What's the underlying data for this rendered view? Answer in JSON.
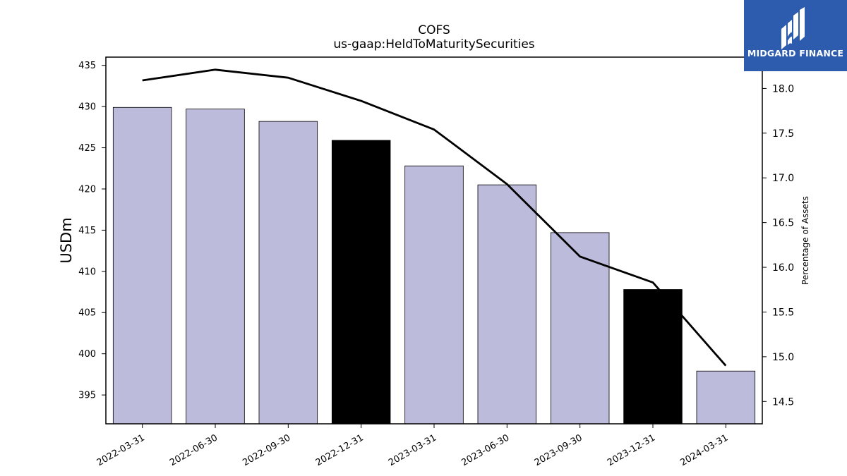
{
  "chart_data": {
    "type": "bar",
    "title": "COFS",
    "subtitle": "us-gaap:HeldToMaturitySecurities",
    "ylabel": "USDm",
    "y2label": "Percentage of Assets",
    "ylim": [
      391.5,
      436
    ],
    "y2lim": [
      14.25,
      18.35
    ],
    "yticks": [
      395,
      400,
      405,
      410,
      415,
      420,
      425,
      430,
      435
    ],
    "y2ticks": [
      "14.5",
      "15.0",
      "15.5",
      "16.0",
      "16.5",
      "17.0",
      "17.5",
      "18.0"
    ],
    "categories": [
      "2022-03-31",
      "2022-06-30",
      "2022-09-30",
      "2022-12-31",
      "2023-03-31",
      "2023-06-30",
      "2023-09-30",
      "2023-12-31",
      "2024-03-31"
    ],
    "series": [
      {
        "type": "bar",
        "axis": "left",
        "values": [
          429.9,
          429.7,
          428.2,
          425.9,
          422.8,
          420.5,
          414.7,
          407.8,
          397.9
        ],
        "colors": [
          "#bdbbdb",
          "#bdbbdb",
          "#bdbbdb",
          "#000000",
          "#bdbbdb",
          "#bdbbdb",
          "#bdbbdb",
          "#000000",
          "#bdbbdb"
        ]
      },
      {
        "type": "line",
        "axis": "right",
        "values": [
          18.09,
          18.21,
          18.12,
          17.86,
          17.54,
          16.93,
          16.12,
          15.83,
          14.9
        ],
        "color": "#000000"
      }
    ],
    "grid": false
  },
  "logo": {
    "text": "MIDGARD FINANCE",
    "background": "#2d5cae"
  }
}
